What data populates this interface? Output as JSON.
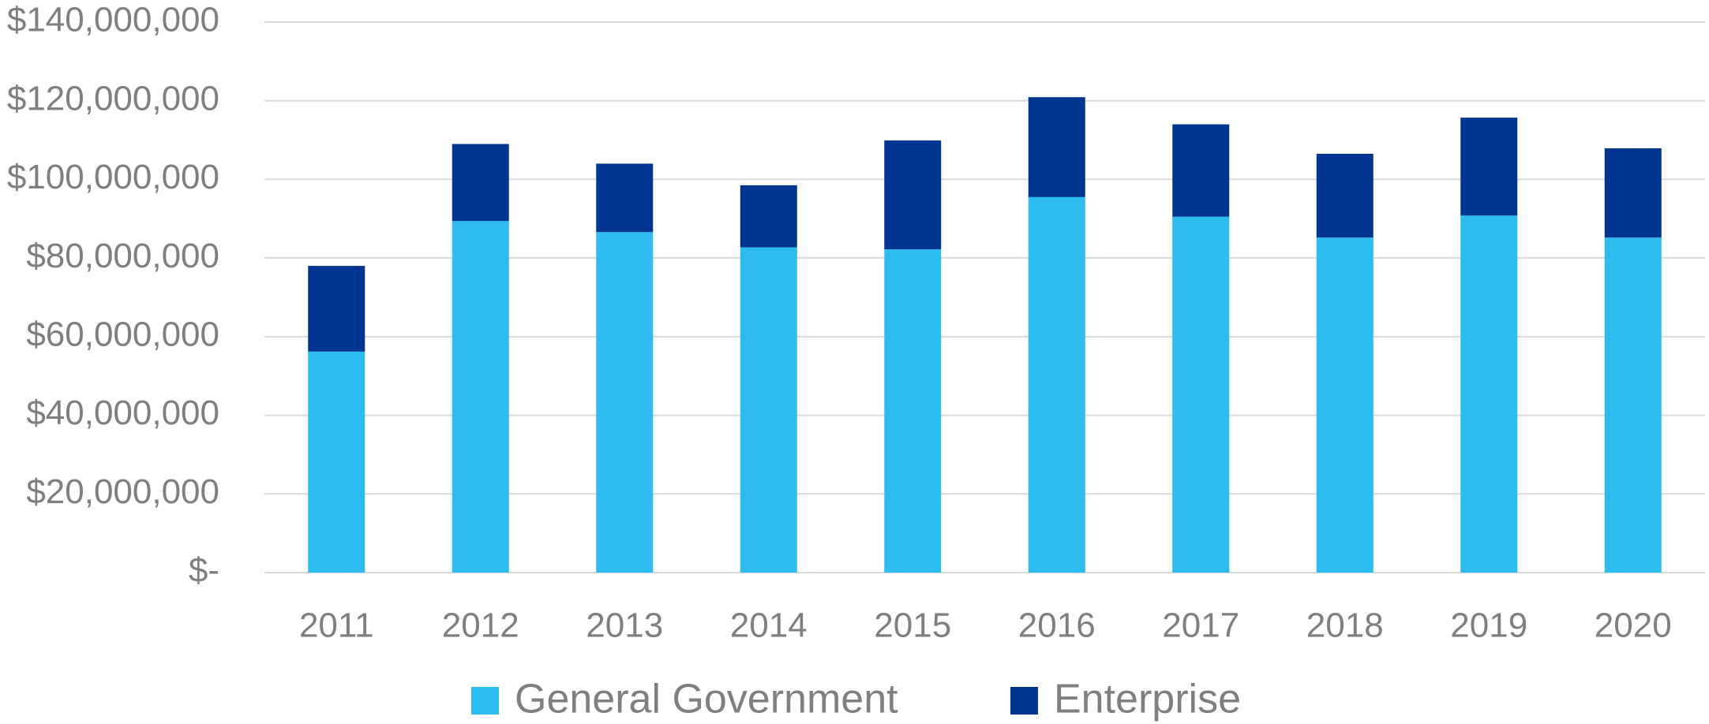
{
  "chart_data": {
    "type": "stacked_bar",
    "categories": [
      "2011",
      "2012",
      "2013",
      "2014",
      "2015",
      "2016",
      "2017",
      "2018",
      "2019",
      "2020"
    ],
    "series": [
      {
        "name": "General Government",
        "color": "#2dbcf0",
        "values": [
          56200000,
          89400000,
          86600000,
          82700000,
          82200000,
          95500000,
          90500000,
          85200000,
          90800000,
          85200000
        ]
      },
      {
        "name": "Enterprise",
        "color": "#003591",
        "values": [
          21800000,
          19600000,
          17400000,
          15800000,
          27700000,
          25400000,
          23500000,
          21300000,
          24900000,
          22700000
        ]
      }
    ],
    "ylim": [
      0,
      140000000
    ],
    "yticks": [
      {
        "value": 0,
        "label": "$-"
      },
      {
        "value": 20000000,
        "label": "$20,000,000"
      },
      {
        "value": 40000000,
        "label": "$40,000,000"
      },
      {
        "value": 60000000,
        "label": "$60,000,000"
      },
      {
        "value": 80000000,
        "label": "$80,000,000"
      },
      {
        "value": 100000000,
        "label": "$100,000,000"
      },
      {
        "value": 120000000,
        "label": "$120,000,000"
      },
      {
        "value": 140000000,
        "label": "$140,000,000"
      }
    ],
    "grid": true,
    "legend": "bottom"
  }
}
